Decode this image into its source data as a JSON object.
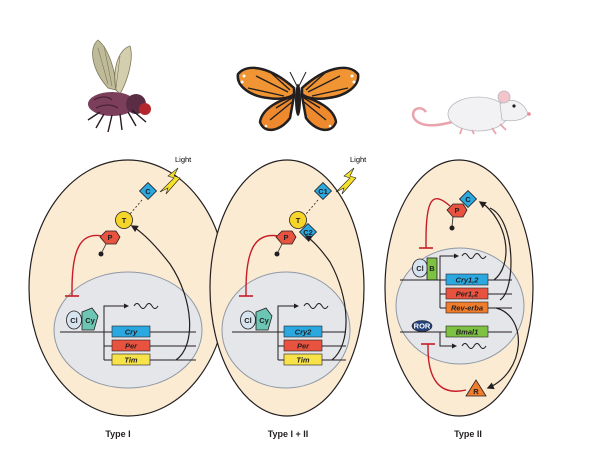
{
  "panels": [
    {
      "title": "Type I",
      "organism": "fly",
      "light_label": "Light",
      "light_target": "C",
      "proteins": {
        "cryptochrome": "C",
        "timeless": "T",
        "period": "P"
      },
      "repressor_complex": [
        "Cl",
        "Cy"
      ],
      "genes": [
        "Cry",
        "Per",
        "Tim"
      ]
    },
    {
      "title": "Type I + II",
      "organism": "butterfly",
      "light_label": "Light",
      "light_target": "C1",
      "proteins": {
        "cryptochrome": "C1",
        "timeless": "T",
        "period": "P",
        "cryptochrome2": "C2"
      },
      "repressor_complex": [
        "Cl",
        "Cy"
      ],
      "genes": [
        "Cry2",
        "Per",
        "Tim"
      ]
    },
    {
      "title": "Type II",
      "organism": "mouse",
      "proteins": {
        "cryptochrome": "C",
        "period": "P",
        "reverb": "R"
      },
      "repressor_complex": [
        "Cl",
        "B"
      ],
      "ror_label": "ROR",
      "genes": [
        "Cry1,2",
        "Per1,2",
        "Rev-erba",
        "Bmal1"
      ]
    }
  ],
  "colors": {
    "cell": "#fbebd3",
    "nucleus": "#e4e6ea",
    "cry": "#2aa8df",
    "per": "#e8533f",
    "tim": "#f7e24a",
    "timeless_protein": "#f6d52a",
    "reverb": "#ef7d2b",
    "bmal": "#7dc242",
    "clock": "#d5e4ef",
    "cycle": "#6cc6b3",
    "ror": "#22407a",
    "repression": "#c61c26",
    "light": "#f6e02a"
  }
}
